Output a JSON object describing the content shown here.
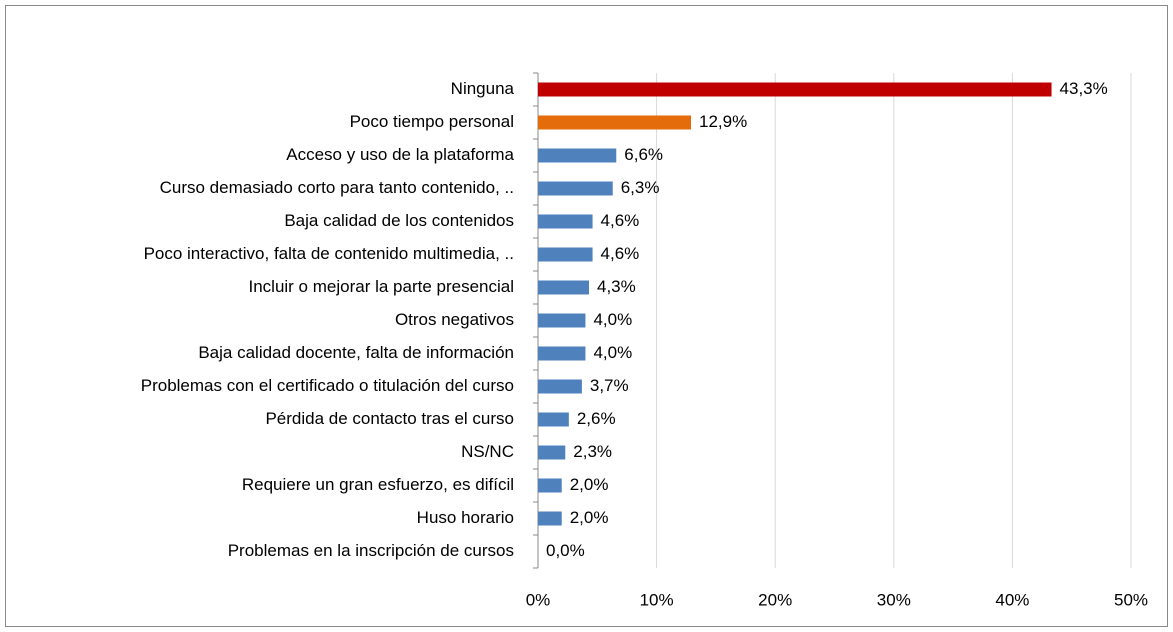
{
  "chart_data": {
    "type": "bar",
    "orientation": "horizontal",
    "categories": [
      "Ninguna",
      "Poco tiempo personal",
      "Acceso y uso de la plataforma",
      "Curso demasiado  corto para tanto contenido, ..",
      "Baja calidad  de los contenidos",
      "Poco interactivo,  falta de contenido multimedia, ..",
      "Incluir o mejorar la parte presencial",
      "Otros negativos",
      "Baja calidad  docente, falta de información",
      "Problemas con el certificado o titulación  del curso",
      "Pérdida de contacto tras el curso",
      "NS/NC",
      "Requiere un gran esfuerzo, es difícil",
      "Huso horario",
      "Problemas en la inscripción  de cursos"
    ],
    "values": [
      43.3,
      12.9,
      6.6,
      6.3,
      4.6,
      4.6,
      4.3,
      4.0,
      4.0,
      3.7,
      2.6,
      2.3,
      2.0,
      2.0,
      0.0
    ],
    "value_labels": [
      "43,3%",
      "12,9%",
      "6,6%",
      "6,3%",
      "4,6%",
      "4,6%",
      "4,3%",
      "4,0%",
      "4,0%",
      "3,7%",
      "2,6%",
      "2,3%",
      "2,0%",
      "2,0%",
      "0,0%"
    ],
    "colors": [
      "#c00000",
      "#e46c0a",
      "#4f81bd",
      "#4f81bd",
      "#4f81bd",
      "#4f81bd",
      "#4f81bd",
      "#4f81bd",
      "#4f81bd",
      "#4f81bd",
      "#4f81bd",
      "#4f81bd",
      "#4f81bd",
      "#4f81bd",
      "#4f81bd"
    ],
    "xlim": [
      0,
      50
    ],
    "xticks": [
      {
        "value": 0,
        "label": "0%"
      },
      {
        "value": 10,
        "label": "10%"
      },
      {
        "value": 20,
        "label": "20%"
      },
      {
        "value": 30,
        "label": "30%"
      },
      {
        "value": 40,
        "label": "40%"
      },
      {
        "value": 50,
        "label": "50%"
      }
    ],
    "grid": true
  }
}
